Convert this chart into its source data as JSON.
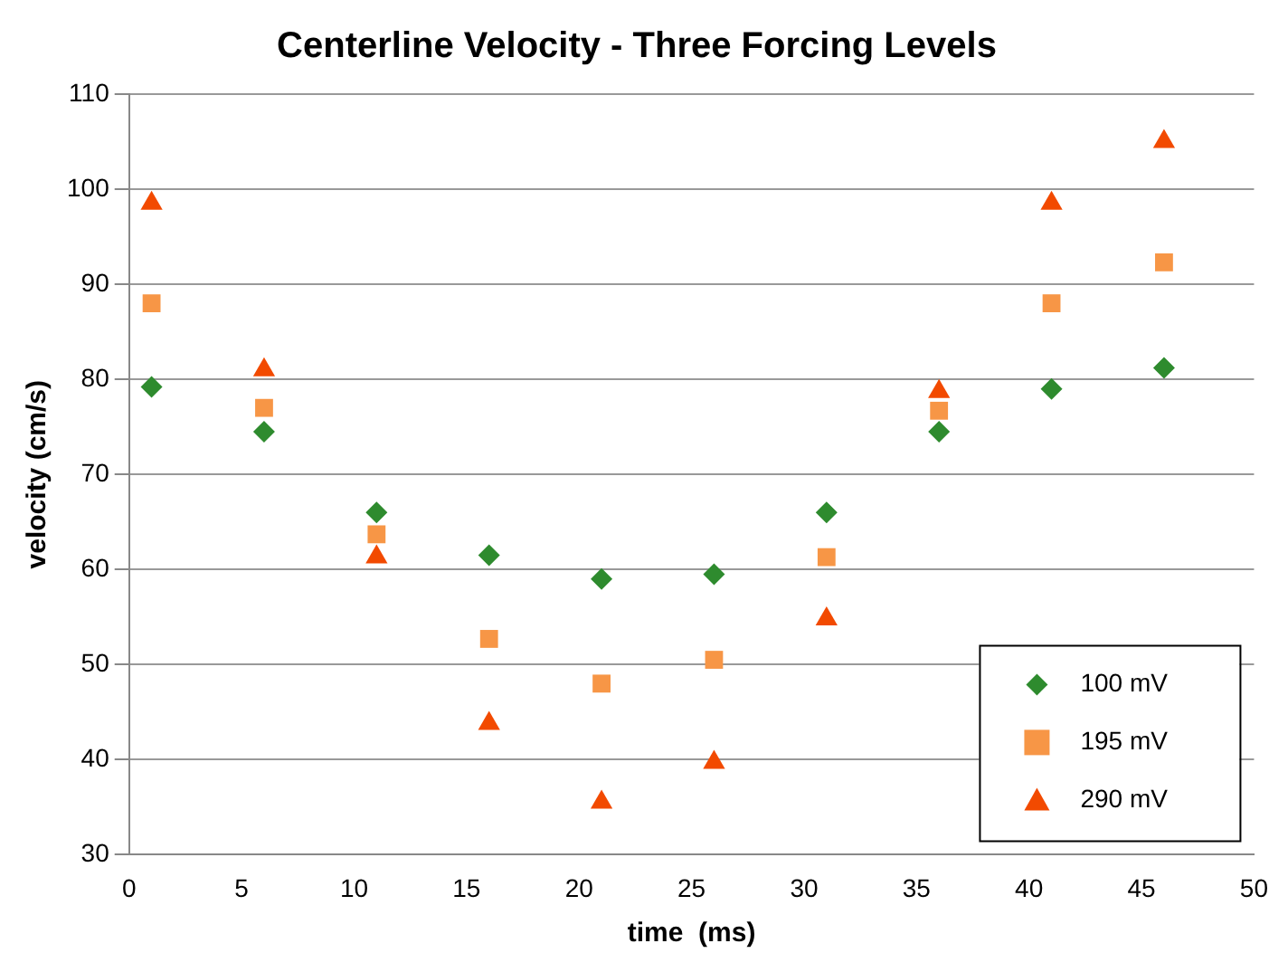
{
  "chart_data": {
    "type": "scatter",
    "title": "Centerline Velocity - Three Forcing Levels",
    "xlabel": "time  (ms)",
    "ylabel": "velocity (cm/s)",
    "x": [
      1,
      6,
      11,
      16,
      21,
      26,
      31,
      36,
      41,
      46
    ],
    "series": [
      {
        "name": "100 mV",
        "color": "#2e8b2e",
        "marker": "diamond",
        "values": [
          79.2,
          74.5,
          66,
          61.5,
          59,
          59.5,
          66,
          74.5,
          79,
          81.2
        ]
      },
      {
        "name": "195 mV",
        "color": "#f79646",
        "marker": "square",
        "values": [
          88,
          77,
          63.7,
          52.7,
          48,
          50.5,
          61.3,
          76.7,
          88,
          92.3
        ]
      },
      {
        "name": "290 mV",
        "color": "#f24a00",
        "marker": "triangle",
        "values": [
          98.5,
          81,
          61.3,
          43.8,
          35.5,
          39.7,
          54.8,
          78.7,
          98.5,
          105
        ]
      }
    ],
    "xlim": [
      0,
      50
    ],
    "xticks": [
      0,
      5,
      10,
      15,
      20,
      25,
      30,
      35,
      40,
      45,
      50
    ],
    "ylim": [
      30,
      110
    ],
    "yticks": [
      30,
      40,
      50,
      60,
      70,
      80,
      90,
      100,
      110
    ],
    "grid": "y",
    "legend": "bottom right"
  }
}
